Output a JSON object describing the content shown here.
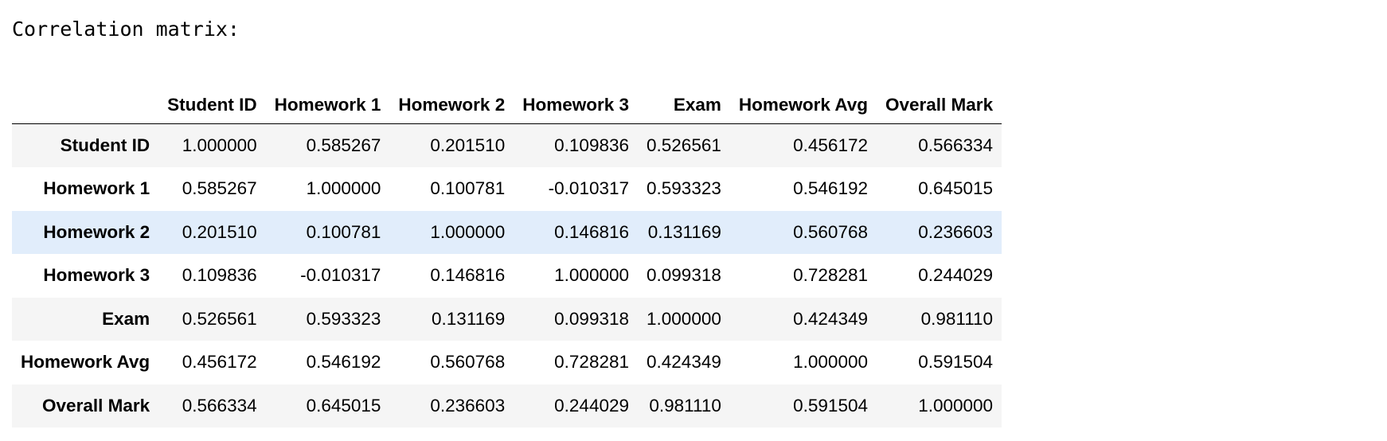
{
  "output": {
    "heading": "Correlation matrix:"
  },
  "table": {
    "columns": [
      "Student ID",
      "Homework 1",
      "Homework 2",
      "Homework 3",
      "Exam",
      "Homework Avg",
      "Overall Mark"
    ],
    "highlighted_row": 2,
    "rows": [
      {
        "label": "Student ID",
        "values": [
          "1.000000",
          "0.585267",
          "0.201510",
          "0.109836",
          "0.526561",
          "0.456172",
          "0.566334"
        ]
      },
      {
        "label": "Homework 1",
        "values": [
          "0.585267",
          "1.000000",
          "0.100781",
          "-0.010317",
          "0.593323",
          "0.546192",
          "0.645015"
        ]
      },
      {
        "label": "Homework 2",
        "values": [
          "0.201510",
          "0.100781",
          "1.000000",
          "0.146816",
          "0.131169",
          "0.560768",
          "0.236603"
        ]
      },
      {
        "label": "Homework 3",
        "values": [
          "0.109836",
          "-0.010317",
          "0.146816",
          "1.000000",
          "0.099318",
          "0.728281",
          "0.244029"
        ]
      },
      {
        "label": "Exam",
        "values": [
          "0.526561",
          "0.593323",
          "0.131169",
          "0.099318",
          "1.000000",
          "0.424349",
          "0.981110"
        ]
      },
      {
        "label": "Homework Avg",
        "values": [
          "0.456172",
          "0.546192",
          "0.560768",
          "0.728281",
          "0.424349",
          "1.000000",
          "0.591504"
        ]
      },
      {
        "label": "Overall Mark",
        "values": [
          "0.566334",
          "0.645015",
          "0.236603",
          "0.244029",
          "0.981110",
          "0.591504",
          "1.000000"
        ]
      }
    ]
  },
  "colors": {
    "row_stripe": "#f5f5f5",
    "row_highlight": "#e1edfb",
    "header_rule": "#000000"
  }
}
